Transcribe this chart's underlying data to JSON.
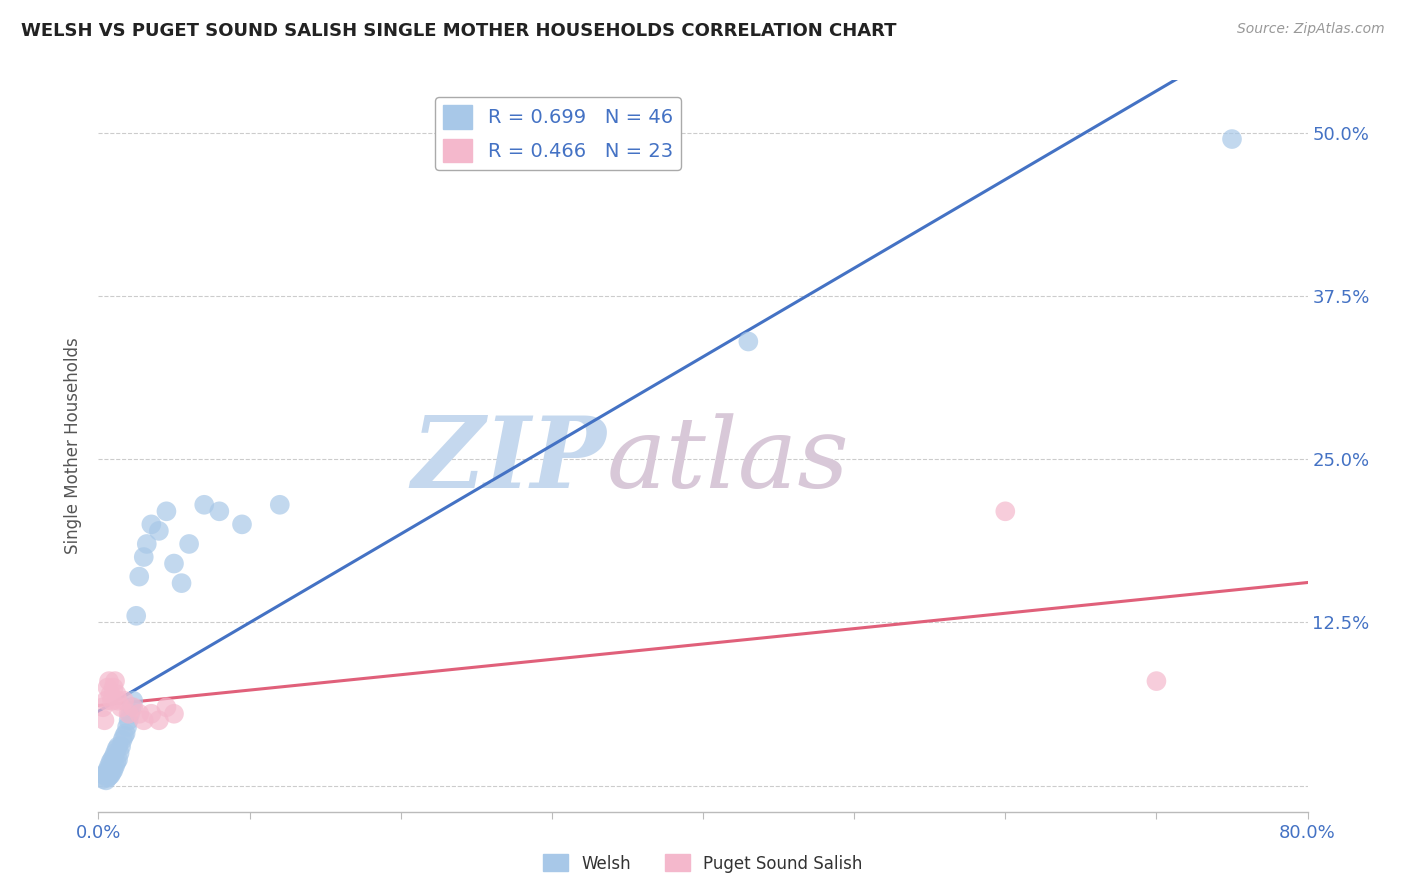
{
  "title": "WELSH VS PUGET SOUND SALISH SINGLE MOTHER HOUSEHOLDS CORRELATION CHART",
  "source": "Source: ZipAtlas.com",
  "ylabel": "Single Mother Households",
  "xlim": [
    0.0,
    0.8
  ],
  "ylim": [
    -0.02,
    0.54
  ],
  "xticks": [
    0.0,
    0.1,
    0.2,
    0.3,
    0.4,
    0.5,
    0.6,
    0.7,
    0.8
  ],
  "yticks": [
    0.0,
    0.125,
    0.25,
    0.375,
    0.5
  ],
  "welsh_color": "#a8c8e8",
  "salish_color": "#f4b8cc",
  "welsh_line_color": "#4472c4",
  "salish_line_color": "#e0607a",
  "watermark_text": "ZIPatlas",
  "watermark_color": "#dce6f0",
  "legend_welsh_R": "0.699",
  "legend_welsh_N": "46",
  "legend_salish_R": "0.466",
  "legend_salish_N": "23",
  "welsh_x": [
    0.003,
    0.004,
    0.005,
    0.005,
    0.006,
    0.006,
    0.007,
    0.007,
    0.008,
    0.008,
    0.009,
    0.009,
    0.01,
    0.01,
    0.011,
    0.011,
    0.012,
    0.012,
    0.013,
    0.013,
    0.014,
    0.015,
    0.016,
    0.017,
    0.018,
    0.019,
    0.02,
    0.021,
    0.022,
    0.023,
    0.025,
    0.027,
    0.03,
    0.032,
    0.035,
    0.04,
    0.045,
    0.05,
    0.055,
    0.06,
    0.07,
    0.08,
    0.095,
    0.12,
    0.43,
    0.75
  ],
  "welsh_y": [
    0.005,
    0.008,
    0.004,
    0.01,
    0.006,
    0.012,
    0.007,
    0.015,
    0.008,
    0.018,
    0.01,
    0.02,
    0.012,
    0.022,
    0.015,
    0.025,
    0.018,
    0.028,
    0.02,
    0.03,
    0.025,
    0.03,
    0.035,
    0.038,
    0.04,
    0.045,
    0.05,
    0.055,
    0.06,
    0.065,
    0.13,
    0.16,
    0.175,
    0.185,
    0.2,
    0.195,
    0.21,
    0.17,
    0.155,
    0.185,
    0.215,
    0.21,
    0.2,
    0.215,
    0.34,
    0.495
  ],
  "salish_x": [
    0.003,
    0.004,
    0.005,
    0.006,
    0.007,
    0.008,
    0.009,
    0.01,
    0.011,
    0.012,
    0.013,
    0.015,
    0.017,
    0.02,
    0.023,
    0.027,
    0.03,
    0.035,
    0.04,
    0.045,
    0.05,
    0.6,
    0.7
  ],
  "salish_y": [
    0.06,
    0.05,
    0.065,
    0.075,
    0.08,
    0.07,
    0.065,
    0.075,
    0.08,
    0.07,
    0.065,
    0.06,
    0.065,
    0.055,
    0.06,
    0.055,
    0.05,
    0.055,
    0.05,
    0.06,
    0.055,
    0.21,
    0.08
  ],
  "background_color": "#ffffff",
  "grid_color": "#cccccc"
}
